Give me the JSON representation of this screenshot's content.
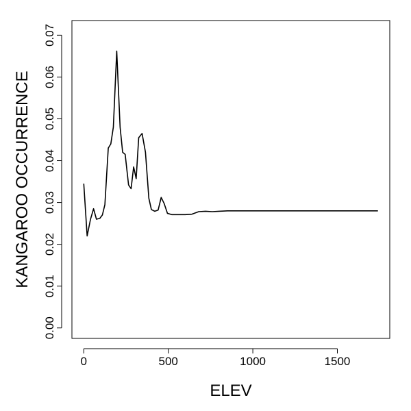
{
  "chart_data": {
    "type": "line",
    "title": "",
    "xlabel": "ELEV",
    "ylabel": "KANGAROO OCCURRENCE",
    "xlim": [
      -70,
      1810
    ],
    "ylim": [
      -0.0025,
      0.0735
    ],
    "xticks": [
      0,
      500,
      1000,
      1500
    ],
    "xtick_labels": [
      "0",
      "500",
      "1000",
      "1500"
    ],
    "yticks": [
      0.0,
      0.01,
      0.02,
      0.03,
      0.04,
      0.05,
      0.06,
      0.07
    ],
    "ytick_labels": [
      "0.00",
      "0.01",
      "0.02",
      "0.03",
      "0.04",
      "0.05",
      "0.06",
      "0.07"
    ],
    "grid": false,
    "series": [
      {
        "color": "#000000",
        "x": [
          0,
          20,
          40,
          58,
          75,
          95,
          110,
          125,
          145,
          160,
          175,
          195,
          215,
          230,
          245,
          265,
          280,
          295,
          310,
          325,
          345,
          365,
          385,
          400,
          420,
          440,
          458,
          475,
          495,
          520,
          550,
          600,
          640,
          680,
          720,
          760,
          800,
          850,
          900,
          1000,
          1200,
          1500,
          1740
        ],
        "y": [
          0.0345,
          0.022,
          0.026,
          0.0285,
          0.026,
          0.0262,
          0.027,
          0.0295,
          0.043,
          0.044,
          0.048,
          0.0662,
          0.048,
          0.042,
          0.0415,
          0.0342,
          0.0333,
          0.0385,
          0.0357,
          0.0455,
          0.0465,
          0.042,
          0.031,
          0.0283,
          0.0279,
          0.0282,
          0.0312,
          0.0298,
          0.0274,
          0.0271,
          0.0271,
          0.0271,
          0.0272,
          0.0278,
          0.0279,
          0.0278,
          0.0279,
          0.028,
          0.028,
          0.028,
          0.028,
          0.028,
          0.028
        ]
      }
    ]
  }
}
